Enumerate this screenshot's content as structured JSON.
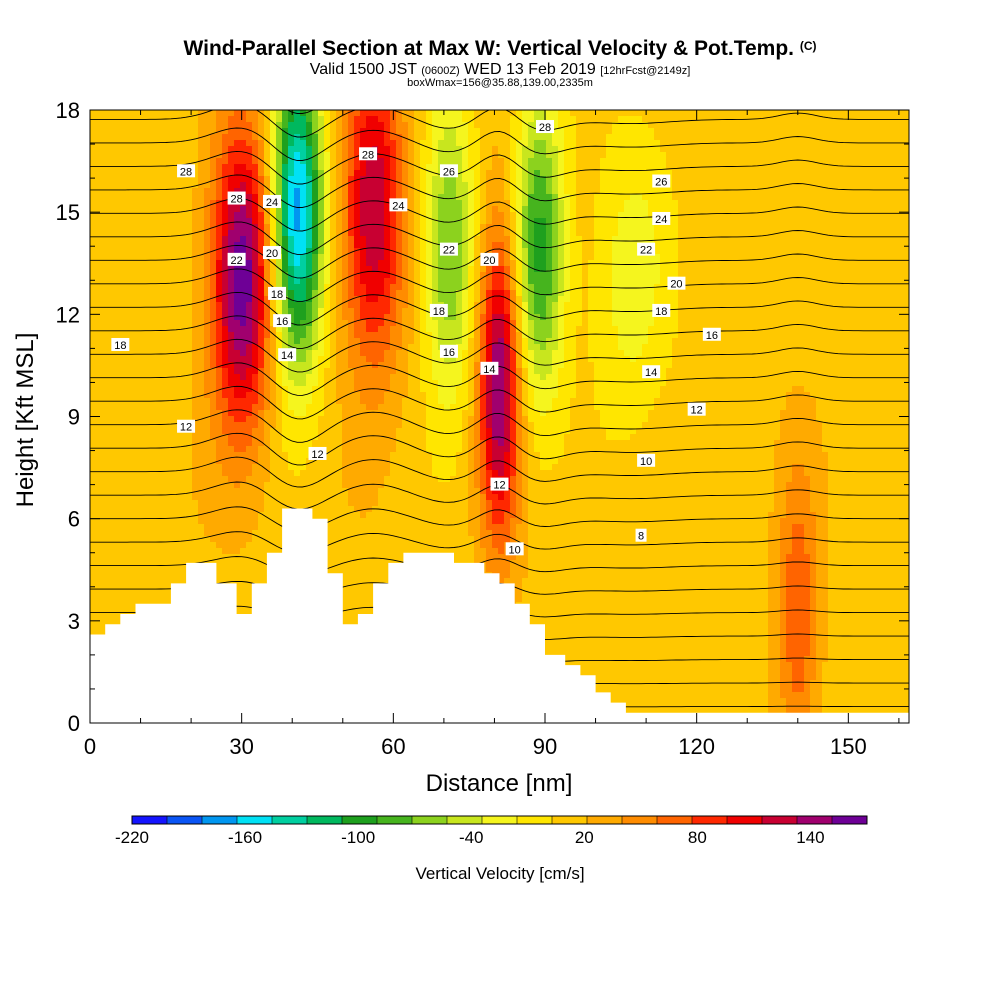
{
  "header": {
    "title": "Wind-Parallel Section at Max W: Vertical Velocity & Pot.Temp.",
    "copyright": "(C)",
    "valid_pre": "Valid 1500 JST",
    "valid_utc": "(0600Z)",
    "valid_post": "WED 13 Feb 2019",
    "forecast": "[12hrFcst@2149z]",
    "box_info": "boxWmax=156@35.88,139.00,2335m"
  },
  "colorbar": {
    "label": "Vertical Velocity [cm/s]",
    "tick_labels": [
      "-220",
      "-160",
      "-100",
      "-40",
      "20",
      "80",
      "140"
    ],
    "colors": [
      "#1414ff",
      "#0a55f5",
      "#0096f0",
      "#00e1f5",
      "#00cfa0",
      "#00b85e",
      "#1ea01e",
      "#46b41e",
      "#8cd21e",
      "#c8e61e",
      "#f5f51e",
      "#ffe600",
      "#ffc800",
      "#ffaa00",
      "#ff8c00",
      "#ff6400",
      "#ff2800",
      "#f00000",
      "#c80032",
      "#a0006e",
      "#6e0096"
    ]
  },
  "chart_data": {
    "type": "heatmap",
    "title": "Wind-Parallel Section at Max W: Vertical Velocity & Pot.Temp.",
    "xlabel": "Distance [nm]",
    "ylabel": "Height [Kft MSL]",
    "xlim": [
      0,
      162
    ],
    "ylim": [
      0,
      18
    ],
    "x_ticks": [
      0,
      30,
      60,
      90,
      120,
      150
    ],
    "y_ticks": [
      0,
      3,
      6,
      9,
      12,
      15,
      18
    ],
    "color_variable": "Vertical Velocity [cm/s]",
    "color_range": [
      -220,
      170
    ],
    "contour_variable": "Pot.Temp.",
    "w_features": [
      {
        "x": 30,
        "y": 13,
        "w": 150,
        "width_nm": 6
      },
      {
        "x": 41,
        "y": 15,
        "w": -190,
        "width_nm": 5
      },
      {
        "x": 56,
        "y": 15,
        "w": 120,
        "width_nm": 6
      },
      {
        "x": 71,
        "y": 14,
        "w": -90,
        "width_nm": 5
      },
      {
        "x": 81,
        "y": 10,
        "w": 140,
        "width_nm": 4
      },
      {
        "x": 89,
        "y": 14,
        "w": -110,
        "width_nm": 5
      },
      {
        "x": 107,
        "y": 13,
        "w": -40,
        "width_nm": 8
      },
      {
        "x": 140,
        "y": 3,
        "w": 60,
        "width_nm": 4
      }
    ],
    "terrain": [
      [
        0,
        2.6
      ],
      [
        3,
        2.6
      ],
      [
        3,
        2.9
      ],
      [
        6,
        2.9
      ],
      [
        6,
        3.2
      ],
      [
        9,
        3.2
      ],
      [
        9,
        3.5
      ],
      [
        16,
        3.5
      ],
      [
        16,
        4.1
      ],
      [
        19,
        4.1
      ],
      [
        19,
        4.7
      ],
      [
        25,
        4.7
      ],
      [
        25,
        4.1
      ],
      [
        29,
        4.1
      ],
      [
        29,
        3.2
      ],
      [
        32,
        3.2
      ],
      [
        32,
        4.1
      ],
      [
        35,
        4.1
      ],
      [
        35,
        5.0
      ],
      [
        38,
        5.0
      ],
      [
        38,
        6.3
      ],
      [
        44,
        6.3
      ],
      [
        44,
        6.0
      ],
      [
        47,
        6.0
      ],
      [
        47,
        4.4
      ],
      [
        50,
        4.4
      ],
      [
        50,
        2.9
      ],
      [
        53,
        2.9
      ],
      [
        53,
        3.2
      ],
      [
        56,
        3.2
      ],
      [
        56,
        4.1
      ],
      [
        59,
        4.1
      ],
      [
        59,
        4.7
      ],
      [
        62,
        4.7
      ],
      [
        62,
        5.0
      ],
      [
        72,
        5.0
      ],
      [
        72,
        4.7
      ],
      [
        78,
        4.7
      ],
      [
        78,
        4.4
      ],
      [
        81,
        4.4
      ],
      [
        81,
        4.1
      ],
      [
        84,
        4.1
      ],
      [
        84,
        3.5
      ],
      [
        87,
        3.5
      ],
      [
        87,
        2.9
      ],
      [
        90,
        2.9
      ],
      [
        90,
        2.0
      ],
      [
        94,
        2.0
      ],
      [
        94,
        1.7
      ],
      [
        97,
        1.7
      ],
      [
        97,
        1.4
      ],
      [
        100,
        1.4
      ],
      [
        100,
        0.9
      ],
      [
        103,
        0.9
      ],
      [
        103,
        0.6
      ],
      [
        106,
        0.6
      ],
      [
        106,
        0.3
      ],
      [
        162,
        0.3
      ]
    ],
    "theta_contour_labels": [
      {
        "x": 19,
        "y": 16.2,
        "v": "28"
      },
      {
        "x": 29,
        "y": 15.4,
        "v": "28"
      },
      {
        "x": 36,
        "y": 15.3,
        "v": "24"
      },
      {
        "x": 29,
        "y": 13.6,
        "v": "22"
      },
      {
        "x": 36,
        "y": 13.8,
        "v": "20"
      },
      {
        "x": 37,
        "y": 12.6,
        "v": "18"
      },
      {
        "x": 38,
        "y": 11.8,
        "v": "16"
      },
      {
        "x": 39,
        "y": 10.8,
        "v": "14"
      },
      {
        "x": 6,
        "y": 11.1,
        "v": "18"
      },
      {
        "x": 19,
        "y": 8.7,
        "v": "12"
      },
      {
        "x": 45,
        "y": 7.9,
        "v": "12"
      },
      {
        "x": 55,
        "y": 16.7,
        "v": "28"
      },
      {
        "x": 61,
        "y": 15.2,
        "v": "24"
      },
      {
        "x": 71,
        "y": 16.2,
        "v": "26"
      },
      {
        "x": 71,
        "y": 13.9,
        "v": "22"
      },
      {
        "x": 69,
        "y": 12.1,
        "v": "18"
      },
      {
        "x": 71,
        "y": 10.9,
        "v": "16"
      },
      {
        "x": 79,
        "y": 13.6,
        "v": "20"
      },
      {
        "x": 79,
        "y": 10.4,
        "v": "14"
      },
      {
        "x": 81,
        "y": 7.0,
        "v": "12"
      },
      {
        "x": 84,
        "y": 5.1,
        "v": "10"
      },
      {
        "x": 90,
        "y": 17.5,
        "v": "28"
      },
      {
        "x": 113,
        "y": 15.9,
        "v": "26"
      },
      {
        "x": 113,
        "y": 14.8,
        "v": "24"
      },
      {
        "x": 110,
        "y": 13.9,
        "v": "22"
      },
      {
        "x": 116,
        "y": 12.9,
        "v": "20"
      },
      {
        "x": 113,
        "y": 12.1,
        "v": "18"
      },
      {
        "x": 123,
        "y": 11.4,
        "v": "16"
      },
      {
        "x": 111,
        "y": 10.3,
        "v": "14"
      },
      {
        "x": 120,
        "y": 9.2,
        "v": "12"
      },
      {
        "x": 110,
        "y": 7.7,
        "v": "10"
      },
      {
        "x": 109,
        "y": 5.5,
        "v": "8"
      }
    ]
  }
}
